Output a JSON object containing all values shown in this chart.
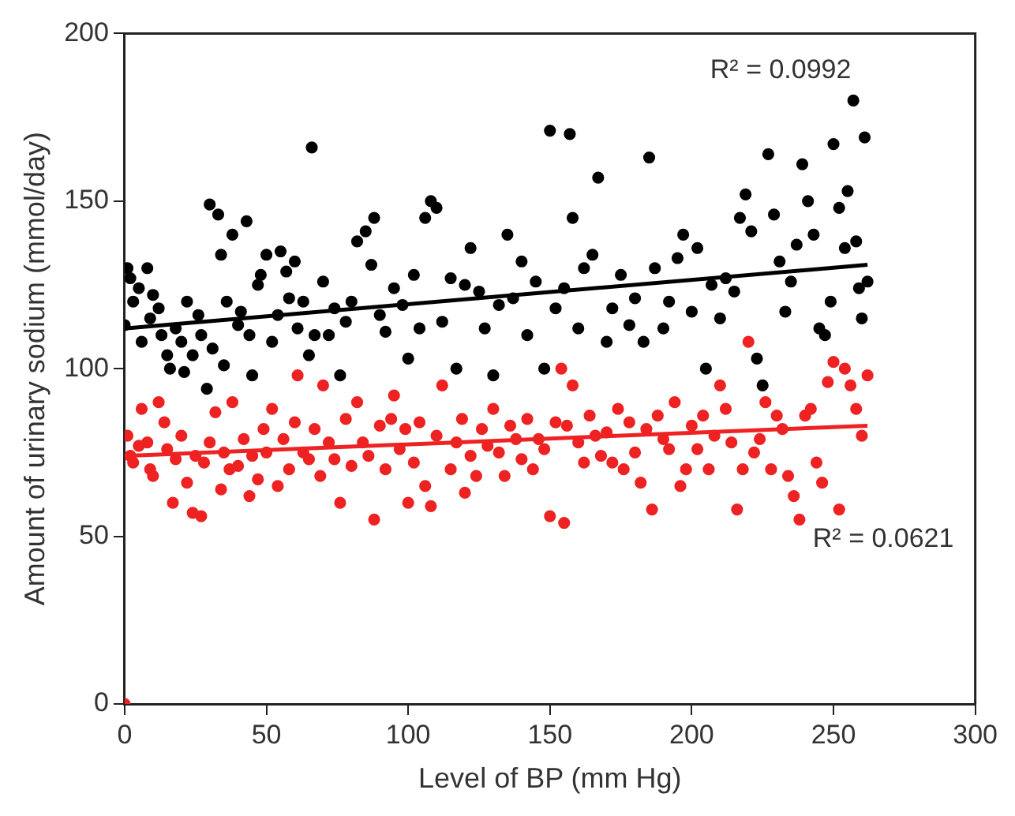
{
  "chart_data": {
    "type": "scatter",
    "xlabel": "Level of BP (mm Hg)",
    "ylabel": "Amount of urinary sodium (mmol/day)",
    "xlim": [
      0,
      300
    ],
    "xticks": [
      0,
      50,
      100,
      150,
      200,
      250,
      300
    ],
    "ylim": [
      0,
      200
    ],
    "yticks": [
      0,
      50,
      100,
      150,
      200
    ],
    "grid": false,
    "legend": false,
    "marker": "circle",
    "series": [
      {
        "color": "#000000",
        "x": [
          0,
          1,
          2,
          3,
          5,
          6,
          8,
          9,
          10,
          12,
          13,
          15,
          16,
          18,
          20,
          21,
          22,
          24,
          26,
          27,
          29,
          30,
          31,
          33,
          34,
          35,
          36,
          38,
          40,
          41,
          43,
          44,
          45,
          47,
          48,
          50,
          52,
          54,
          55,
          57,
          58,
          60,
          61,
          63,
          65,
          66,
          67,
          70,
          72,
          74,
          76,
          78,
          80,
          82,
          85,
          87,
          88,
          90,
          92,
          95,
          98,
          100,
          102,
          104,
          106,
          108,
          110,
          112,
          115,
          117,
          120,
          122,
          125,
          127,
          130,
          132,
          135,
          137,
          140,
          142,
          145,
          148,
          150,
          152,
          155,
          157,
          158,
          160,
          162,
          165,
          167,
          170,
          172,
          175,
          178,
          180,
          183,
          185,
          187,
          190,
          192,
          195,
          197,
          200,
          202,
          205,
          207,
          210,
          212,
          215,
          217,
          219,
          221,
          223,
          225,
          227,
          229,
          231,
          233,
          235,
          237,
          239,
          241,
          243,
          245,
          247,
          249,
          250,
          252,
          254,
          255,
          257,
          258,
          259,
          260,
          261,
          262
        ],
        "values": [
          113,
          130,
          127,
          120,
          124,
          108,
          130,
          115,
          122,
          118,
          110,
          104,
          100,
          112,
          108,
          99,
          120,
          104,
          116,
          110,
          94,
          149,
          106,
          146,
          134,
          101,
          120,
          140,
          113,
          117,
          144,
          110,
          98,
          125,
          128,
          134,
          108,
          116,
          135,
          129,
          121,
          132,
          112,
          120,
          104,
          166,
          110,
          126,
          110,
          118,
          98,
          114,
          120,
          138,
          141,
          131,
          145,
          116,
          111,
          124,
          119,
          103,
          128,
          112,
          145,
          150,
          148,
          114,
          127,
          100,
          125,
          136,
          123,
          112,
          98,
          119,
          140,
          121,
          132,
          110,
          126,
          100,
          171,
          118,
          124,
          170,
          145,
          112,
          130,
          134,
          157,
          108,
          118,
          128,
          113,
          121,
          108,
          163,
          130,
          112,
          120,
          133,
          140,
          117,
          136,
          100,
          125,
          115,
          127,
          123,
          145,
          152,
          141,
          103,
          95,
          164,
          146,
          132,
          117,
          126,
          137,
          161,
          150,
          140,
          112,
          110,
          120,
          167,
          148,
          136,
          153,
          180,
          138,
          124,
          115,
          169,
          126
        ]
      },
      {
        "color": "#ee2222",
        "x": [
          0,
          1,
          2,
          3,
          5,
          6,
          8,
          9,
          10,
          12,
          14,
          15,
          17,
          18,
          20,
          22,
          24,
          25,
          27,
          28,
          30,
          32,
          34,
          35,
          37,
          38,
          40,
          42,
          44,
          45,
          47,
          49,
          50,
          52,
          54,
          56,
          58,
          60,
          61,
          63,
          65,
          67,
          69,
          70,
          72,
          74,
          76,
          78,
          80,
          82,
          84,
          86,
          88,
          90,
          92,
          94,
          95,
          97,
          99,
          100,
          102,
          104,
          106,
          108,
          110,
          112,
          115,
          117,
          119,
          120,
          122,
          124,
          126,
          128,
          130,
          132,
          134,
          136,
          138,
          140,
          142,
          144,
          146,
          148,
          150,
          152,
          154,
          155,
          156,
          158,
          160,
          162,
          164,
          166,
          168,
          170,
          172,
          174,
          176,
          178,
          180,
          182,
          184,
          186,
          188,
          190,
          192,
          194,
          196,
          198,
          200,
          202,
          204,
          206,
          208,
          210,
          212,
          214,
          216,
          218,
          220,
          222,
          224,
          226,
          228,
          230,
          232,
          234,
          236,
          238,
          240,
          242,
          244,
          246,
          248,
          250,
          252,
          254,
          256,
          258,
          260,
          262
        ],
        "values": [
          0,
          80,
          74,
          72,
          77,
          88,
          78,
          70,
          68,
          90,
          84,
          76,
          60,
          73,
          80,
          66,
          57,
          74,
          56,
          72,
          78,
          87,
          64,
          75,
          70,
          90,
          71,
          79,
          62,
          74,
          67,
          82,
          75,
          88,
          65,
          79,
          70,
          84,
          98,
          75,
          73,
          82,
          68,
          95,
          78,
          73,
          60,
          85,
          71,
          90,
          78,
          74,
          55,
          83,
          70,
          85,
          92,
          76,
          82,
          60,
          72,
          84,
          65,
          59,
          80,
          95,
          70,
          78,
          85,
          63,
          74,
          68,
          82,
          77,
          88,
          75,
          68,
          83,
          79,
          73,
          85,
          70,
          79,
          76,
          56,
          84,
          100,
          54,
          83,
          95,
          78,
          72,
          86,
          80,
          74,
          81,
          72,
          88,
          70,
          84,
          75,
          66,
          82,
          58,
          86,
          79,
          76,
          90,
          65,
          70,
          83,
          76,
          86,
          70,
          80,
          95,
          88,
          78,
          58,
          70,
          108,
          75,
          79,
          90,
          70,
          86,
          82,
          68,
          62,
          55,
          86,
          88,
          72,
          66,
          96,
          102,
          58,
          100,
          95,
          88,
          80,
          98
        ]
      },
      {
        "type": "line",
        "marker": "none",
        "color": "#000000",
        "x": [
          0,
          262
        ],
        "values": [
          112,
          131
        ]
      },
      {
        "type": "line",
        "marker": "none",
        "color": "#ee2222",
        "x": [
          0,
          262
        ],
        "values": [
          74,
          83
        ]
      }
    ],
    "annotations": [
      "R² = 0.0992",
      "R² = 0.0621"
    ]
  }
}
